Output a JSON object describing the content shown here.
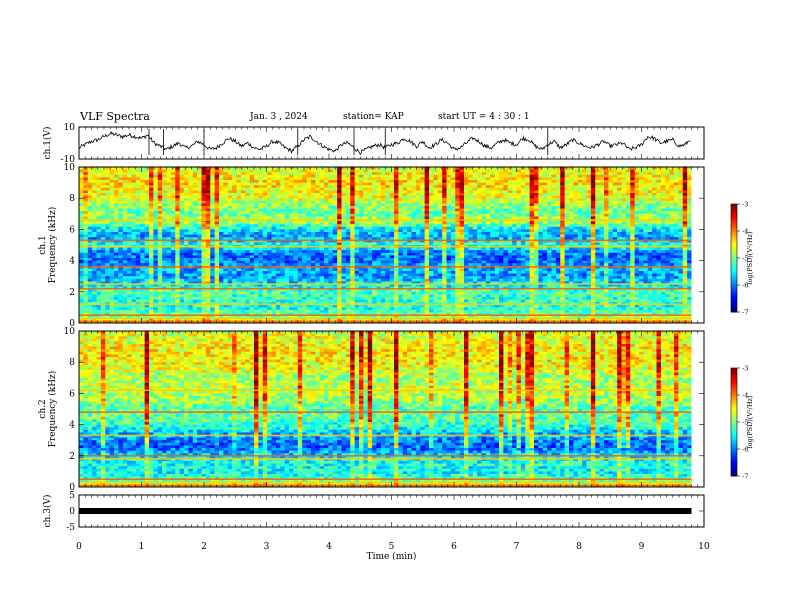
{
  "header": {
    "title": "VLF Spectra",
    "date": "Jan. 3 , 2024",
    "station": "station= KAP",
    "start": "start UT = 4 : 30 : 1"
  },
  "chart_data": [
    {
      "type": "line",
      "name": "ch1-voltage",
      "ylabel": "ch.1(V)",
      "ylim": [
        -10,
        10
      ],
      "ytick_labels": [
        "10",
        "-10"
      ],
      "x": [
        0,
        0.1,
        0.2,
        0.3,
        0.4,
        0.5,
        0.6,
        0.7,
        0.8,
        0.9,
        1.0,
        1.1,
        1.2,
        1.3,
        1.4,
        1.5,
        1.6,
        1.7,
        1.8,
        1.9,
        2.0,
        2.1,
        2.2,
        2.3,
        2.4,
        2.5,
        2.6,
        2.7,
        2.8,
        2.9,
        3.0,
        3.1,
        3.2,
        3.3,
        3.4,
        3.5,
        3.6,
        3.7,
        3.8,
        3.9,
        4.0,
        4.1,
        4.2,
        4.3,
        4.4,
        4.5,
        4.6,
        4.7,
        4.8,
        4.9,
        5.0,
        5.1,
        5.2,
        5.3,
        5.4,
        5.5,
        5.6,
        5.7,
        5.8,
        5.9,
        6.0,
        6.1,
        6.2,
        6.3,
        6.4,
        6.5,
        6.6,
        6.7,
        6.8,
        6.9,
        7.0,
        7.1,
        7.2,
        7.3,
        7.4,
        7.5,
        7.6,
        7.7,
        7.8,
        7.9,
        8.0,
        8.1,
        8.2,
        8.3,
        8.4,
        8.5,
        8.6,
        8.7,
        8.8,
        8.9,
        9.0,
        9.1,
        9.2,
        9.3,
        9.4,
        9.5,
        9.6,
        9.7,
        9.8
      ],
      "y": [
        -3,
        -1,
        1,
        2,
        4,
        6,
        5,
        4,
        5,
        4,
        3,
        5,
        0,
        -2,
        -4,
        -2,
        0,
        -3,
        -2,
        1,
        -1,
        -4,
        -3,
        0,
        3,
        1,
        -2,
        0,
        -3,
        -4,
        -2,
        1,
        0,
        -3,
        -5,
        -2,
        2,
        4,
        1,
        -2,
        -4,
        -5,
        -1,
        0,
        -3,
        -6,
        -4,
        -2,
        -1,
        -3,
        -1,
        0,
        3,
        1,
        -2,
        1,
        -3,
        -1,
        2,
        0,
        -4,
        -3,
        0,
        3,
        1,
        -2,
        -3,
        0,
        2,
        0,
        -1,
        3,
        2,
        -2,
        -4,
        -1,
        1,
        -3,
        -1,
        2,
        0,
        -2,
        -3,
        -1,
        1,
        -2,
        -1,
        0,
        -4,
        -3,
        -1,
        4,
        3,
        0,
        1,
        2,
        -2,
        -1,
        3
      ]
    },
    {
      "type": "heatmap",
      "name": "ch1-spectrogram",
      "ylabel": "ch.1 Frequency (kHz)",
      "ylim": [
        0,
        10
      ],
      "ytick_labels": [
        "0",
        "2",
        "4",
        "6",
        "8",
        "10"
      ],
      "colorbar": {
        "label": "log(PSD)(V²/Hz)",
        "range": [
          -7,
          -3
        ],
        "tick_labels": [
          "-3",
          "-4",
          "-5",
          "-6",
          "-7"
        ]
      },
      "profile_freq_khz": [
        0,
        0.5,
        1,
        1.5,
        2,
        2.5,
        3,
        3.5,
        4,
        4.5,
        5,
        5.5,
        6,
        6.5,
        7,
        7.5,
        8,
        8.5,
        9,
        9.5,
        10
      ],
      "profile_log_psd": [
        -4.2,
        -5.1,
        -5.4,
        -5.3,
        -5.2,
        -5.6,
        -5.9,
        -5.8,
        -6.1,
        -6.0,
        -5.3,
        -5.9,
        -5.6,
        -4.8,
        -5.1,
        -5.0,
        -4.6,
        -4.5,
        -4.4,
        -4.5,
        -4.6
      ],
      "lines_khz": [
        0.1,
        0.3,
        0.5,
        1.2,
        2.2,
        2.5,
        3.6,
        4.9,
        5.3,
        6.6
      ]
    },
    {
      "type": "heatmap",
      "name": "ch2-spectrogram",
      "ylabel": "ch.2 Frequency (kHz)",
      "ylim": [
        0,
        10
      ],
      "ytick_labels": [
        "0",
        "2",
        "4",
        "6",
        "8",
        "10"
      ],
      "colorbar": {
        "label": "log(PSD)(V²/Hz)",
        "range": [
          -7,
          -3
        ],
        "tick_labels": [
          "-3",
          "-4",
          "-5",
          "-6",
          "-7"
        ]
      },
      "profile_freq_khz": [
        0,
        0.5,
        1,
        1.5,
        2,
        2.5,
        3,
        3.5,
        4,
        4.5,
        5,
        5.5,
        6,
        6.5,
        7,
        7.5,
        8,
        8.5,
        9,
        9.5,
        10
      ],
      "profile_log_psd": [
        -4.3,
        -5.2,
        -5.5,
        -5.4,
        -5.6,
        -6.1,
        -6.0,
        -5.7,
        -5.3,
        -5.1,
        -5.2,
        -4.9,
        -4.8,
        -4.7,
        -4.9,
        -4.6,
        -4.5,
        -4.4,
        -4.5,
        -4.6,
        -4.6
      ],
      "lines_khz": [
        0.1,
        0.3,
        0.5,
        1.8,
        2.0,
        3.3,
        4.8,
        6.2
      ]
    },
    {
      "type": "line",
      "name": "ch3-voltage",
      "ylabel": "ch.3(V)",
      "ylim": [
        -5,
        5
      ],
      "ytick_labels": [
        "5",
        "0",
        "-5"
      ],
      "x": [
        0,
        9.8
      ],
      "y": [
        0,
        0
      ],
      "xlabel": "Time (min)",
      "xlim": [
        0,
        10
      ],
      "xtick_labels": [
        "0",
        "1",
        "2",
        "3",
        "4",
        "5",
        "6",
        "7",
        "8",
        "9",
        "10"
      ]
    }
  ]
}
